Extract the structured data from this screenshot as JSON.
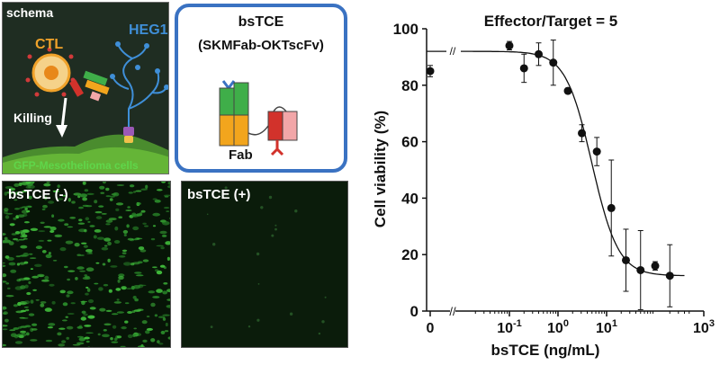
{
  "schema_panel": {
    "title": "schema",
    "ctl_label": "CTL",
    "heg1_label": "HEG1",
    "killing_label": "Killing",
    "cells_label": "GFP-Mesothelioma cells"
  },
  "construct_panel": {
    "title": "bsTCE",
    "subtitle": "(SKMFab-OKTscFv)",
    "fab_label": "Fab"
  },
  "micrographs": {
    "negative_label": "bsTCE (-)",
    "positive_label": "bsTCE (+)"
  },
  "colors": {
    "ctl_orange": "#f0a22a",
    "heg1_blue": "#3f8fd8",
    "gfp_green": "#5fd64a",
    "frame_blue": "#3a72c2",
    "domain_green": "#3fae49",
    "domain_orange": "#f2a51d",
    "domain_red": "#d2322b",
    "domain_pink": "#f2a6a8"
  },
  "chart_data": {
    "type": "scatter",
    "title": "Effector/Target = 5",
    "xlabel": "bsTCE (ng/mL)",
    "ylabel": "Cell viability (%)",
    "xscale": "log",
    "xlim": [
      0.01,
      1000
    ],
    "ylim": [
      0,
      100
    ],
    "x_tick_labels": [
      "0",
      "10",
      "10",
      "10",
      "10"
    ],
    "x_tick_exponents": [
      "",
      "-1",
      "0",
      "1",
      "3"
    ],
    "y_tick_labels": [
      "0",
      "20",
      "40",
      "60",
      "80",
      "100"
    ],
    "axis_break_symbol": "//",
    "zero_point": {
      "x": 0,
      "y": 85,
      "err": 2
    },
    "points": [
      {
        "x": 0.1,
        "y": 94,
        "err": 1.5
      },
      {
        "x": 0.2,
        "y": 86,
        "err": 5
      },
      {
        "x": 0.4,
        "y": 91,
        "err": 4
      },
      {
        "x": 0.8,
        "y": 88,
        "err": 8
      },
      {
        "x": 1.6,
        "y": 78,
        "err": 1
      },
      {
        "x": 3.1,
        "y": 63,
        "err": 3
      },
      {
        "x": 6.3,
        "y": 56.5,
        "err": 5
      },
      {
        "x": 12.5,
        "y": 36.5,
        "err": 17
      },
      {
        "x": 25,
        "y": 18,
        "err": 11
      },
      {
        "x": 50,
        "y": 14.5,
        "err": 14
      },
      {
        "x": 100,
        "y": 16,
        "err": 1.5
      },
      {
        "x": 200,
        "y": 12.5,
        "err": 11
      }
    ],
    "fit_curve": {
      "type": "sigmoid",
      "top": 92,
      "bottom": 12.5,
      "ec50": 5,
      "hill": 1.6,
      "x_range": [
        0.01,
        400
      ]
    }
  }
}
